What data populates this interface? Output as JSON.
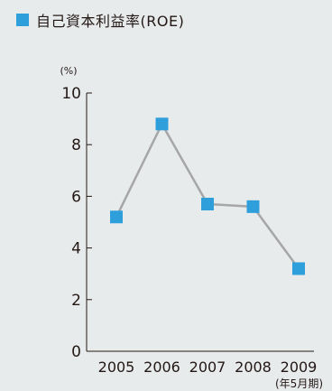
{
  "colors": {
    "background": "#e8ebec",
    "marker": "#2f9fdb",
    "line": "#a6a6a6",
    "axis": "#231815",
    "text": "#231815"
  },
  "header": {
    "title": "自己資本利益率(ROE)",
    "marker_icon": "blue-square-icon"
  },
  "chart_data": {
    "type": "line",
    "title": "自己資本利益率(ROE)",
    "ylabel": "(%)",
    "xlabel": "(年5月期)",
    "categories": [
      "2005",
      "2006",
      "2007",
      "2008",
      "2009"
    ],
    "series": [
      {
        "values": [
          5.2,
          8.8,
          5.7,
          5.6,
          3.2
        ]
      }
    ],
    "ylim": [
      0,
      10
    ],
    "yticks": [
      0,
      2,
      4,
      6,
      8,
      10
    ],
    "grid": false,
    "marker": "square"
  }
}
